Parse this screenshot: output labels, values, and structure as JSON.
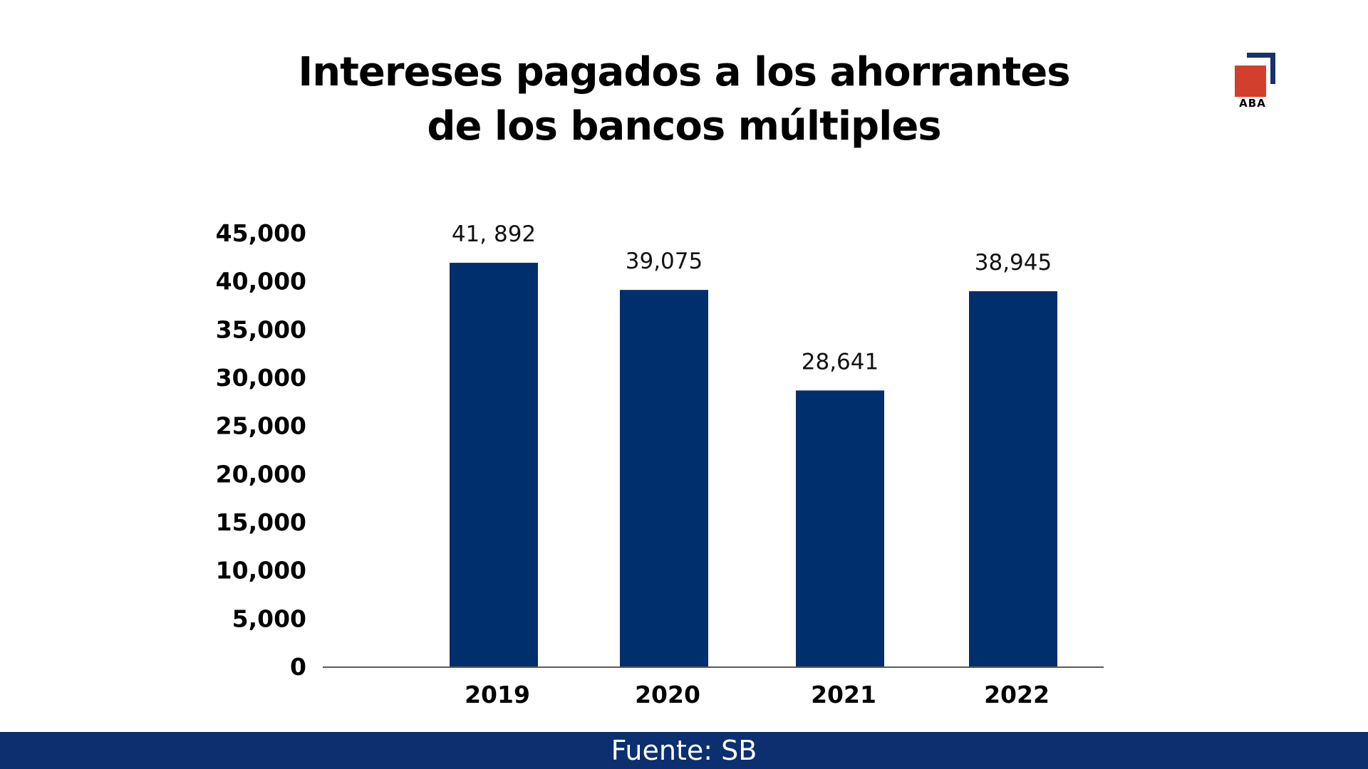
{
  "title": {
    "line1": "Intereses pagados a los ahorrantes",
    "line2": "de los bancos múltiples"
  },
  "logo": {
    "text": "ABA",
    "colors": {
      "square": "#d23f2d",
      "bracket": "#17326b"
    }
  },
  "footer": {
    "text": "Fuente: SB",
    "background": "#0b2f6f"
  },
  "chart_data": {
    "type": "bar",
    "categories": [
      "2019",
      "2020",
      "2021",
      "2022"
    ],
    "values": [
      41892,
      39075,
      28641,
      38945
    ],
    "data_labels": [
      "41, 892",
      "39,075",
      "28,641",
      "38,945"
    ],
    "y_ticks": [
      "0",
      "5,000",
      "10,000",
      "15,000",
      "20,000",
      "25,000",
      "30,000",
      "35,000",
      "40,000",
      "45,000"
    ],
    "ylim": [
      0,
      45000
    ],
    "grid": false,
    "legend": "none",
    "bar_color": "#002f6e"
  }
}
